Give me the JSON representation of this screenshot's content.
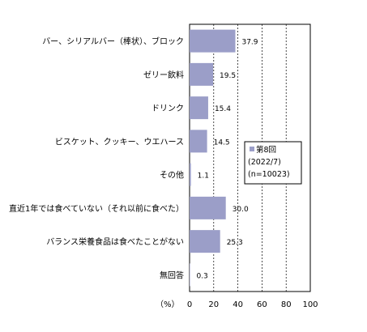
{
  "chart_data": {
    "type": "bar",
    "orientation": "horizontal",
    "categories": [
      "バー、シリアルバー（棒状）、ブロック",
      "ゼリー飲料",
      "ドリンク",
      "ビスケット、クッキー、ウエハース",
      "その他",
      "直近1年では食べていない（それ以前に食べた）",
      "バランス栄養食品は食べたことがない",
      "無回答"
    ],
    "series": [
      {
        "name": "第8回 (2022/7) (n=10023)",
        "values": [
          37.9,
          19.5,
          15.4,
          14.5,
          1.1,
          30.0,
          25.3,
          0.3
        ],
        "color": "#9b9ec8"
      }
    ],
    "value_labels": [
      "37.9",
      "19.5",
      "15.4",
      "14.5",
      "1.1",
      "30.0",
      "25.3",
      "0.3"
    ],
    "xlim": [
      0,
      100
    ],
    "xticks": [
      "0",
      "20",
      "40",
      "60",
      "80",
      "100"
    ],
    "xlabel": "（%）",
    "grid": "vertical dashed",
    "legend": {
      "position": "right",
      "lines": [
        "第8回",
        "(2022/7)",
        "(n=10023)"
      ],
      "swatch_color": "#9b9ec8"
    }
  }
}
